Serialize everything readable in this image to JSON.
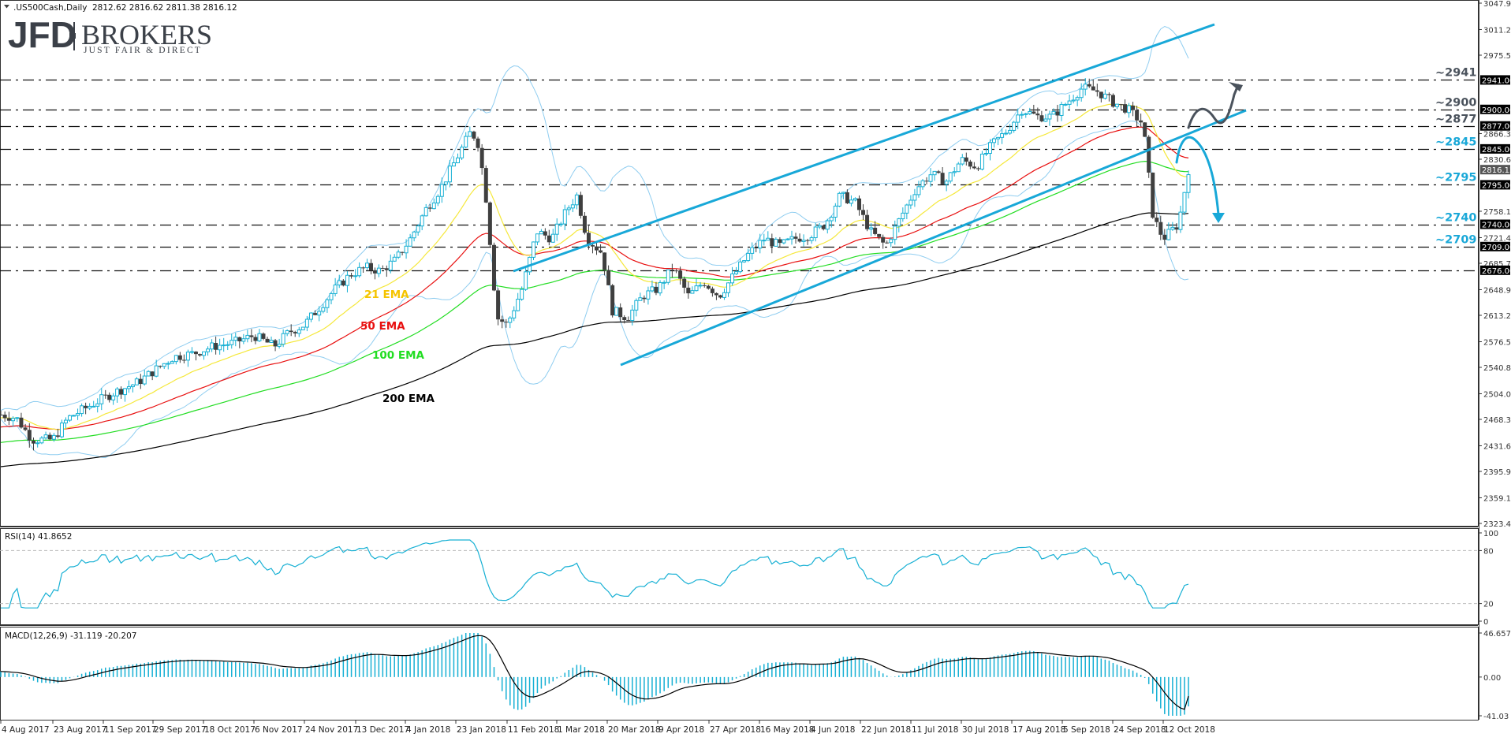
{
  "header": {
    "symbol_line": ".US500Cash,Daily",
    "ohlc": "2812.62 2816.62 2811.38 2816.12",
    "dropdown_icon": "triangle-down-icon"
  },
  "brand": {
    "logo": "JFD",
    "name": "BROKERS",
    "tagline": "JUST FAIR & DIRECT"
  },
  "colors": {
    "bull_candle": "#17b0d4",
    "bear_candle": "#3f3f3f",
    "ema21": "#f5e83b",
    "ema50": "#e81010",
    "ema100": "#22dd22",
    "ema200": "#000000",
    "bollinger": "#8fcdf0",
    "channel": "#18a8d8",
    "level_line": "#111111",
    "label_dark": "#4a525c",
    "label_blue": "#1aa8d8",
    "rsi_line": "#17b0d4",
    "macd_hist": "#17b0d4",
    "macd_signal": "#000000"
  },
  "chart_data": {
    "type": "candlestick",
    "title": ".US500Cash,Daily",
    "last_bar": {
      "open": 2812.62,
      "high": 2816.62,
      "low": 2811.38,
      "close": 2816.12
    },
    "current_price": 2816.12,
    "price_axis": {
      "ticks": [
        "3047.95",
        "3011.20",
        "2975.50",
        "2941.00",
        "2900.00",
        "2877.00",
        "2866.30",
        "2845.00",
        "2830.60",
        "2816.12",
        "2795.00",
        "2758.15",
        "2740.00",
        "2721.40",
        "2709.00",
        "2685.70",
        "2676.00",
        "2648.95",
        "2613.25",
        "2576.50",
        "2540.80",
        "2504.05",
        "2468.35",
        "2431.60",
        "2395.90",
        "2359.15",
        "2323.45"
      ],
      "range": [
        2323.45,
        3047.95
      ]
    },
    "x_ticks": [
      "4 Aug 2017",
      "23 Aug 2017",
      "11 Sep 2017",
      "29 Sep 2017",
      "18 Oct 2017",
      "6 Nov 2017",
      "24 Nov 2017",
      "13 Dec 2017",
      "4 Jan 2018",
      "23 Jan 2018",
      "11 Feb 2018",
      "1 Mar 2018",
      "20 Mar 2018",
      "9 Apr 2018",
      "27 Apr 2018",
      "16 May 2018",
      "4 Jun 2018",
      "22 Jun 2018",
      "11 Jul 2018",
      "30 Jul 2018",
      "17 Aug 2018",
      "5 Sep 2018",
      "24 Sep 2018",
      "12 Oct 2018"
    ],
    "horizontal_levels": [
      {
        "value": 2941,
        "label": "~2941",
        "color": "dark",
        "box": "2941.00"
      },
      {
        "value": 2900,
        "label": "~2900",
        "color": "dark",
        "box": "2900.00"
      },
      {
        "value": 2877,
        "label": "~2877",
        "color": "dark",
        "box": "2877.00"
      },
      {
        "value": 2845,
        "label": "~2845",
        "color": "blue",
        "box": "2845.00"
      },
      {
        "value": 2795,
        "label": "~2795",
        "color": "blue",
        "box": "2795.00"
      },
      {
        "value": 2740,
        "label": "~2740",
        "color": "blue",
        "box": "2740.00"
      },
      {
        "value": 2709,
        "label": "~2709",
        "color": "blue",
        "box": "2709.00"
      },
      {
        "value": 2676,
        "label": "",
        "color": "none",
        "box": "2676.00"
      }
    ],
    "indicators_legend": [
      {
        "name": "21 EMA",
        "color": "#f5c400"
      },
      {
        "name": "50 EMA",
        "color": "#e81010"
      },
      {
        "name": "100 EMA",
        "color": "#22dd22"
      },
      {
        "name": "200 EMA",
        "color": "#000000"
      }
    ],
    "close_series_approx": {
      "dates": [
        "4 Aug 2017",
        "23 Aug 2017",
        "11 Sep 2017",
        "29 Sep 2017",
        "18 Oct 2017",
        "6 Nov 2017",
        "24 Nov 2017",
        "13 Dec 2017",
        "4 Jan 2018",
        "23 Jan 2018",
        "11 Feb 2018",
        "1 Mar 2018",
        "20 Mar 2018",
        "9 Apr 2018",
        "27 Apr 2018",
        "16 May 2018",
        "4 Jun 2018",
        "22 Jun 2018",
        "11 Jul 2018",
        "30 Jul 2018",
        "17 Aug 2018",
        "5 Sep 2018",
        "24 Sep 2018",
        "12 Oct 2018"
      ],
      "values": [
        2475,
        2440,
        2490,
        2520,
        2560,
        2590,
        2600,
        2670,
        2715,
        2860,
        2620,
        2700,
        2710,
        2650,
        2670,
        2720,
        2740,
        2750,
        2795,
        2820,
        2850,
        2880,
        2925,
        2760
      ]
    },
    "annotations": [
      "Ascending channel (blue) from Mar 2018 lows to Oct 2018",
      "Scenario arrow up (dark) toward ~2941",
      "Scenario arrow down (blue) from ~2845 toward ~2740"
    ],
    "rsi": {
      "label": "RSI(14) 41.8652",
      "value": 41.8652,
      "ticks": [
        "100",
        "80",
        "20",
        "0"
      ],
      "levels": [
        80,
        20
      ]
    },
    "macd": {
      "label": "MACD(12,26,9) -31.119 -20.207",
      "main": -31.119,
      "signal": -20.207,
      "ticks": [
        "46.657",
        "0.00",
        "-41.03"
      ]
    }
  }
}
